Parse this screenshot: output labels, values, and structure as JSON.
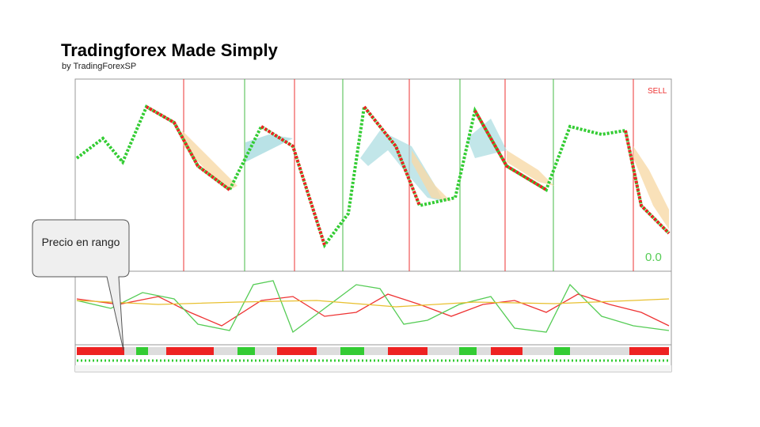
{
  "header": {
    "title": "Tradingforex Made Simply",
    "subtitle": "by TradingForexSP"
  },
  "screenshot": {
    "signal": "SELL",
    "readout": "0.0"
  },
  "callout": {
    "text": "Precio en rango"
  }
}
